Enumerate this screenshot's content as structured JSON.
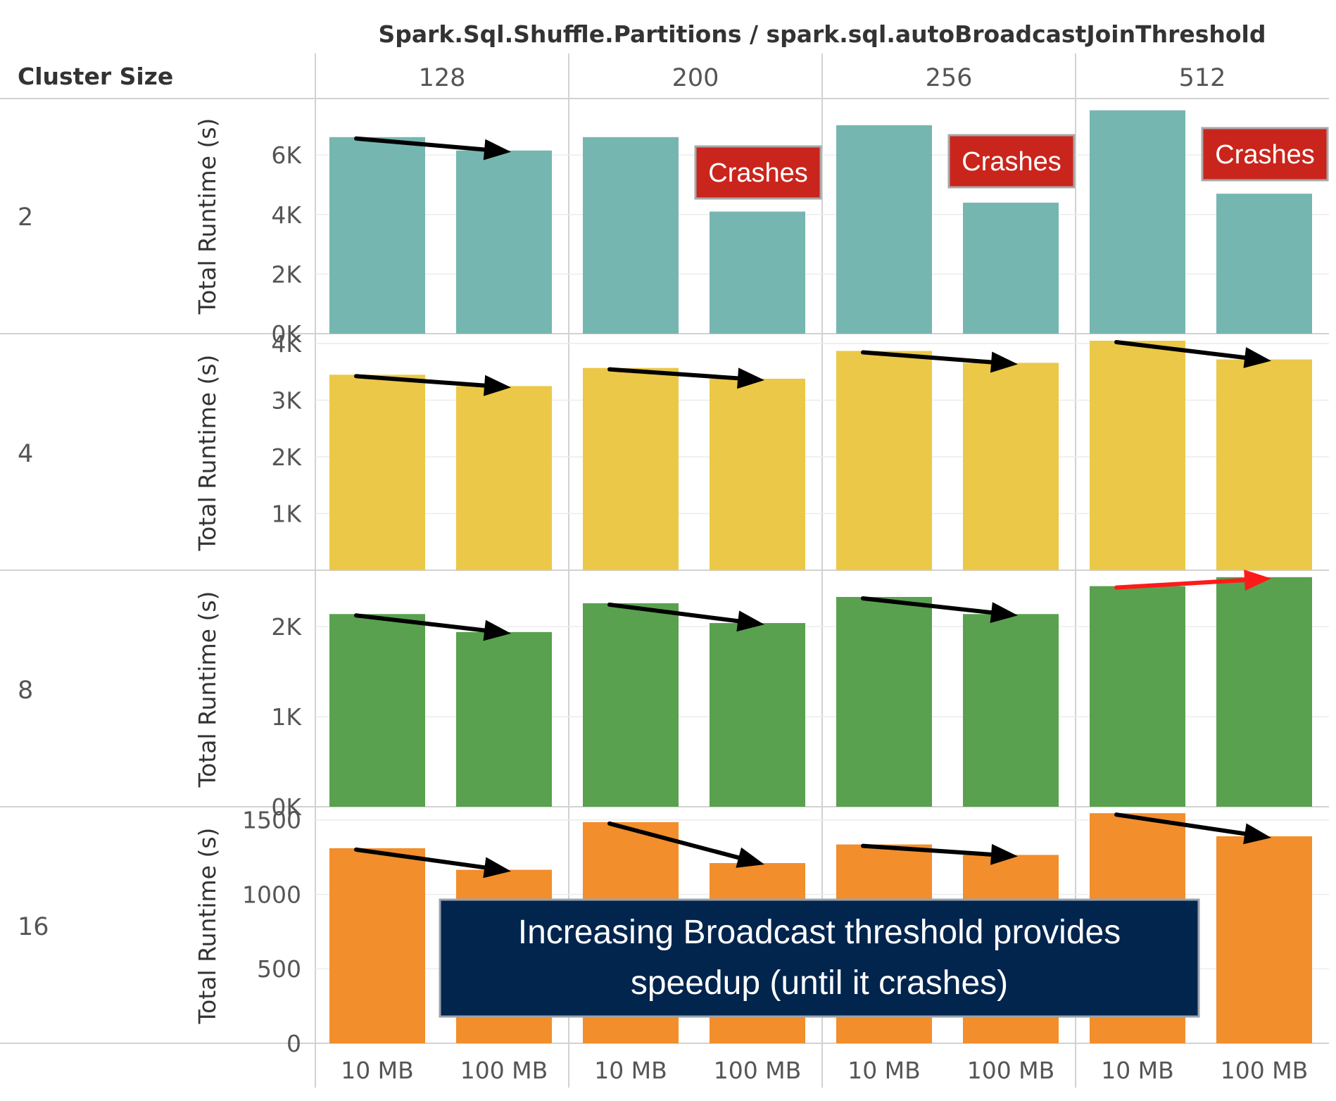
{
  "chart_data": {
    "type": "bar",
    "title": "Spark.Sql.Shuffle.Partitions / spark.sql.autoBroadcastJoinThreshold",
    "row_header": "Cluster Size",
    "ylabel": "Total Runtime (s)",
    "columns": [
      "128",
      "200",
      "256",
      "512"
    ],
    "categories": [
      "10 MB",
      "100 MB"
    ],
    "rows": [
      {
        "name": "2",
        "color": "#76b6b0",
        "ylim": [
          0,
          7800
        ],
        "ticks": [
          {
            "v": 0,
            "label": "0K"
          },
          {
            "v": 2000,
            "label": "2K"
          },
          {
            "v": 4000,
            "label": "4K"
          },
          {
            "v": 6000,
            "label": "6K"
          }
        ],
        "values": [
          [
            6600,
            6150
          ],
          [
            6600,
            4100
          ],
          [
            7000,
            4400
          ],
          [
            7500,
            4700
          ]
        ]
      },
      {
        "name": "4",
        "color": "#ebc847",
        "ylim": [
          0,
          4100
        ],
        "ticks": [
          {
            "v": 1000,
            "label": "1K"
          },
          {
            "v": 2000,
            "label": "2K"
          },
          {
            "v": 3000,
            "label": "3K"
          },
          {
            "v": 4000,
            "label": "4K"
          }
        ],
        "values": [
          [
            3450,
            3250
          ],
          [
            3570,
            3380
          ],
          [
            3870,
            3660
          ],
          [
            4050,
            3720
          ]
        ]
      },
      {
        "name": "8",
        "color": "#59a14f",
        "ylim": [
          0,
          2580
        ],
        "ticks": [
          {
            "v": 0,
            "label": "0K"
          },
          {
            "v": 1000,
            "label": "1K"
          },
          {
            "v": 2000,
            "label": "2K"
          }
        ],
        "values": [
          [
            2140,
            1940
          ],
          [
            2260,
            2040
          ],
          [
            2330,
            2140
          ],
          [
            2450,
            2550
          ]
        ]
      },
      {
        "name": "16",
        "color": "#f28e2b",
        "ylim": [
          0,
          1560
        ],
        "ticks": [
          {
            "v": 0,
            "label": "0"
          },
          {
            "v": 500,
            "label": "500"
          },
          {
            "v": 1000,
            "label": "1000"
          },
          {
            "v": 1500,
            "label": "1500"
          }
        ],
        "values": [
          [
            1310,
            1165
          ],
          [
            1485,
            1210
          ],
          [
            1335,
            1265
          ],
          [
            1545,
            1390
          ]
        ]
      }
    ],
    "annotations": {
      "crashes": [
        {
          "row": 0,
          "col": 1,
          "text": "Crashes"
        },
        {
          "row": 0,
          "col": 2,
          "text": "Crashes"
        },
        {
          "row": 0,
          "col": 3,
          "text": "Crashes"
        }
      ],
      "trend_arrows": [
        {
          "row": 0,
          "col": 0,
          "color": "#000000"
        },
        {
          "row": 1,
          "col": 0,
          "color": "#000000"
        },
        {
          "row": 1,
          "col": 1,
          "color": "#000000"
        },
        {
          "row": 1,
          "col": 2,
          "color": "#000000"
        },
        {
          "row": 1,
          "col": 3,
          "color": "#000000"
        },
        {
          "row": 2,
          "col": 0,
          "color": "#000000"
        },
        {
          "row": 2,
          "col": 1,
          "color": "#000000"
        },
        {
          "row": 2,
          "col": 2,
          "color": "#000000"
        },
        {
          "row": 2,
          "col": 3,
          "color": "#ff1a1a"
        },
        {
          "row": 3,
          "col": 0,
          "color": "#000000"
        },
        {
          "row": 3,
          "col": 1,
          "color": "#000000"
        },
        {
          "row": 3,
          "col": 2,
          "color": "#000000"
        },
        {
          "row": 3,
          "col": 3,
          "color": "#000000"
        }
      ],
      "callout": [
        "Increasing Broadcast threshold provides",
        "speedup (until it crashes)"
      ]
    }
  }
}
